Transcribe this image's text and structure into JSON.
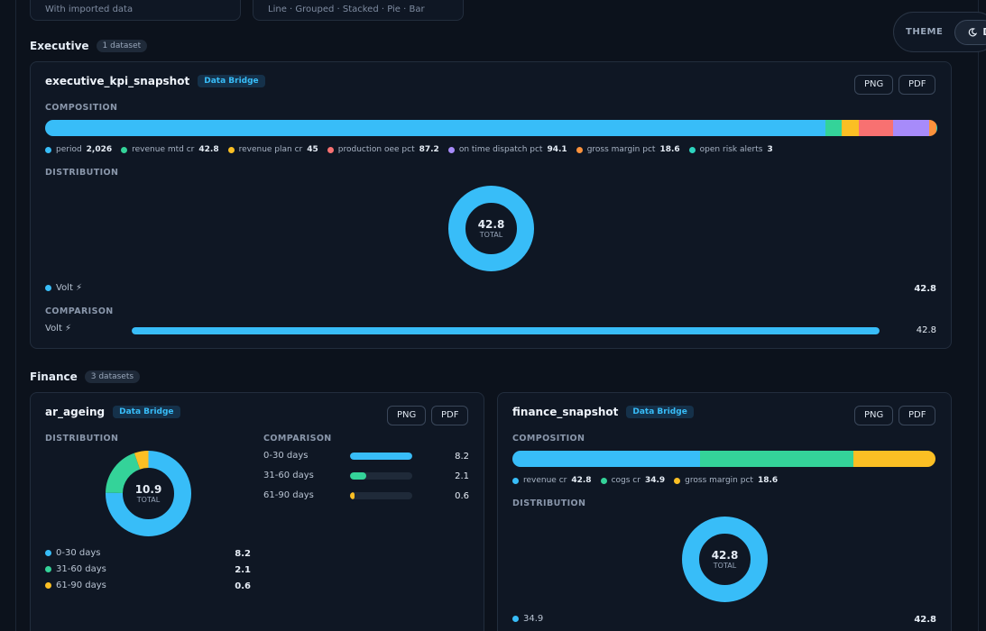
{
  "top_cards": [
    {
      "text": "With imported data"
    },
    {
      "text": "Line · Grouped · Stacked · Pie · Bar"
    }
  ],
  "theme": {
    "label": "THEME",
    "button": "D",
    "icon": "moon-icon"
  },
  "sections": {
    "executive": {
      "title": "Executive",
      "count": "1 dataset"
    },
    "finance": {
      "title": "Finance",
      "count": "3 datasets"
    }
  },
  "exec_card": {
    "title": "executive_kpi_snapshot",
    "badge": "Data Bridge",
    "png": "PNG",
    "pdf": "PDF",
    "composition_label": "COMPOSITION",
    "distribution_label": "DISTRIBUTION",
    "comparison_label": "COMPARISON",
    "composition": [
      {
        "name": "period",
        "value": "2,026",
        "num": 2026,
        "color": "#38bdf8"
      },
      {
        "name": "revenue mtd cr",
        "value": "42.8",
        "num": 42.8,
        "color": "#34d399"
      },
      {
        "name": "revenue plan cr",
        "value": "45",
        "num": 45,
        "color": "#fbbf24"
      },
      {
        "name": "production oee pct",
        "value": "87.2",
        "num": 87.2,
        "color": "#f87171"
      },
      {
        "name": "on time dispatch pct",
        "value": "94.1",
        "num": 94.1,
        "color": "#a78bfa"
      },
      {
        "name": "gross margin pct",
        "value": "18.6",
        "num": 18.6,
        "color": "#fb923c"
      },
      {
        "name": "open risk alerts",
        "value": "3",
        "num": 3,
        "color": "#2dd4bf"
      }
    ],
    "donut": {
      "total": "42.8",
      "total_label": "TOTAL",
      "fractions": [
        1.0
      ],
      "colors": [
        "#38bdf8"
      ]
    },
    "dist_legend": [
      {
        "name": "Volt ⚡",
        "value": "42.8",
        "color": "#38bdf8"
      }
    ],
    "comparison": [
      {
        "name": "Volt ⚡",
        "value": "42.8",
        "fraction": 1.0
      }
    ]
  },
  "ar_card": {
    "title": "ar_ageing",
    "badge": "Data Bridge",
    "png": "PNG",
    "pdf": "PDF",
    "distribution_label": "DISTRIBUTION",
    "comparison_label": "COMPARISON",
    "donut": {
      "total": "10.9",
      "total_label": "TOTAL",
      "fractions": [
        0.752,
        0.193,
        0.055
      ],
      "colors": [
        "#38bdf8",
        "#34d399",
        "#fbbf24"
      ]
    },
    "legend": [
      {
        "name": "0-30 days",
        "value": "8.2",
        "color": "#38bdf8"
      },
      {
        "name": "31-60 days",
        "value": "2.1",
        "color": "#34d399"
      },
      {
        "name": "61-90 days",
        "value": "0.6",
        "color": "#fbbf24"
      }
    ],
    "comparison": [
      {
        "name": "0-30 days",
        "value": "8.2",
        "fraction": 1.0,
        "color": "#38bdf8"
      },
      {
        "name": "31-60 days",
        "value": "2.1",
        "fraction": 0.256,
        "color": "#34d399"
      },
      {
        "name": "61-90 days",
        "value": "0.6",
        "fraction": 0.073,
        "color": "#fbbf24"
      }
    ]
  },
  "fin_card": {
    "title": "finance_snapshot",
    "badge": "Data Bridge",
    "png": "PNG",
    "pdf": "PDF",
    "composition_label": "COMPOSITION",
    "distribution_label": "DISTRIBUTION",
    "composition": [
      {
        "name": "revenue cr",
        "value": "42.8",
        "num": 42.8,
        "color": "#38bdf8"
      },
      {
        "name": "cogs cr",
        "value": "34.9",
        "num": 34.9,
        "color": "#34d399"
      },
      {
        "name": "gross margin pct",
        "value": "18.6",
        "num": 18.6,
        "color": "#fbbf24"
      }
    ],
    "donut": {
      "total": "42.8",
      "total_label": "TOTAL",
      "fractions": [
        1.0
      ],
      "colors": [
        "#38bdf8"
      ]
    },
    "dist_legend": [
      {
        "name": "34.9",
        "value": "42.8",
        "color": "#38bdf8"
      }
    ]
  }
}
